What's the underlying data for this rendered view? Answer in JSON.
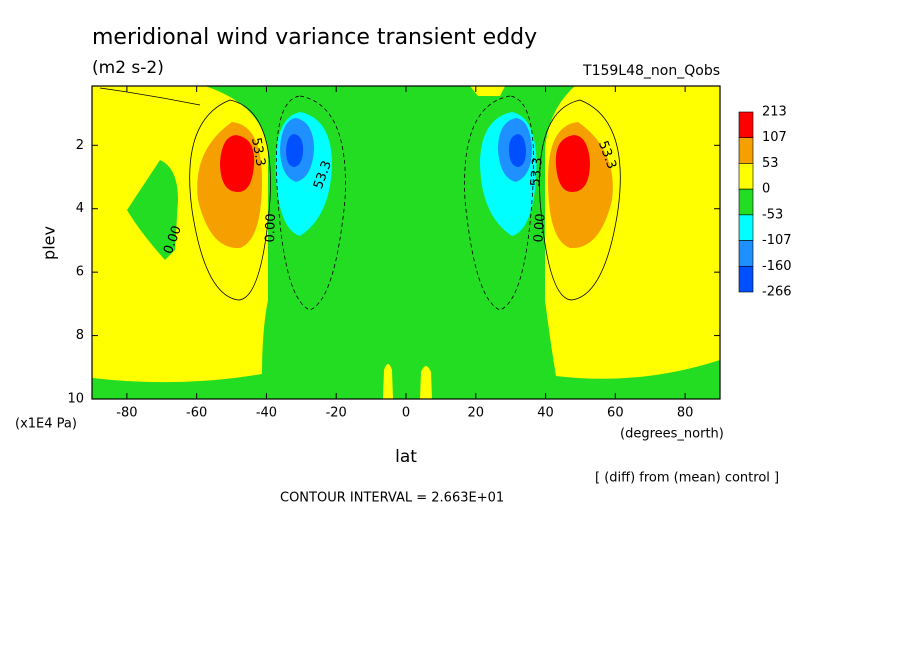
{
  "chart_data": {
    "type": "contour",
    "title": "meridional wind variance transient eddy",
    "units": "(m2 s-2)",
    "subtitle": "T159L48_non_Qobs",
    "xlabel": "lat",
    "ylabel": "plev",
    "x_unit": "(degrees_north)",
    "y_unit": "(x1E4 Pa)",
    "note": "[ (diff) from (mean) control ]",
    "contour_interval": "CONTOUR INTERVAL = 2.663E+01",
    "xlim": [
      -90,
      90
    ],
    "xticks": [
      -80,
      -60,
      -40,
      -20,
      0,
      20,
      40,
      60,
      80
    ],
    "ylim": [
      10,
      0.13
    ],
    "yticks": [
      2,
      4,
      6,
      8,
      10
    ],
    "levels": [
      213,
      107,
      53,
      0,
      -53,
      -107,
      -160,
      -266
    ],
    "colors": [
      "#ff0000",
      "#f5a000",
      "#ffff00",
      "#22dd22",
      "#00ffff",
      "#1e90ff",
      "#0050ff"
    ],
    "contour_labels": [
      "53.3",
      "0.00",
      "0.00",
      "53.3",
      "53.3",
      "0.00",
      "53.3"
    ]
  }
}
